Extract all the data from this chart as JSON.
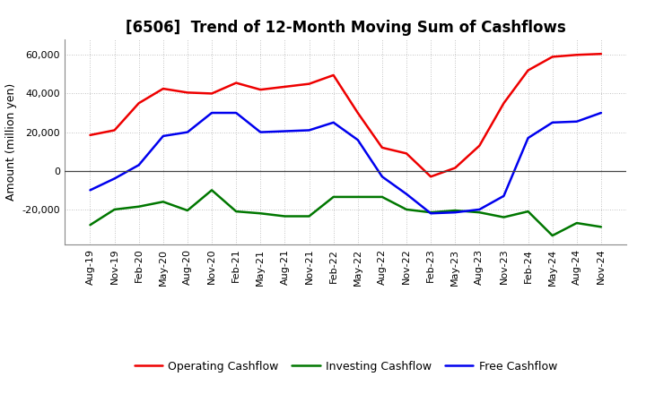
{
  "title": "[6506]  Trend of 12-Month Moving Sum of Cashflows",
  "ylabel": "Amount (million yen)",
  "ylim": [
    -38000,
    68000
  ],
  "yticks": [
    -20000,
    0,
    20000,
    40000,
    60000
  ],
  "background_color": "#ffffff",
  "grid_color": "#b0b0b0",
  "labels": [
    "Aug-19",
    "Nov-19",
    "Feb-20",
    "May-20",
    "Aug-20",
    "Nov-20",
    "Feb-21",
    "May-21",
    "Aug-21",
    "Nov-21",
    "Feb-22",
    "May-22",
    "Aug-22",
    "Nov-22",
    "Feb-23",
    "May-23",
    "Aug-23",
    "Nov-23",
    "Feb-24",
    "May-24",
    "Aug-24",
    "Nov-24"
  ],
  "operating": [
    18500,
    21000,
    35000,
    42500,
    40500,
    40000,
    45500,
    42000,
    43500,
    45000,
    49500,
    30000,
    12000,
    9000,
    -3000,
    1500,
    13000,
    35000,
    52000,
    59000,
    60000,
    60500
  ],
  "investing": [
    -28000,
    -20000,
    -18500,
    -16000,
    -20500,
    -10000,
    -21000,
    -22000,
    -23500,
    -23500,
    -13500,
    -13500,
    -13500,
    -20000,
    -21500,
    -20500,
    -21500,
    -24000,
    -21000,
    -33500,
    -27000,
    -29000
  ],
  "free": [
    -10000,
    -4000,
    3000,
    18000,
    20000,
    30000,
    30000,
    20000,
    20500,
    21000,
    25000,
    16000,
    -3000,
    -12000,
    -22000,
    -21500,
    -20000,
    -13000,
    17000,
    25000,
    25500,
    30000
  ],
  "op_color": "#ee0000",
  "inv_color": "#007700",
  "free_color": "#0000ee",
  "line_width": 1.8,
  "title_fontsize": 12,
  "legend_fontsize": 9,
  "tick_fontsize": 8,
  "ylabel_fontsize": 9
}
